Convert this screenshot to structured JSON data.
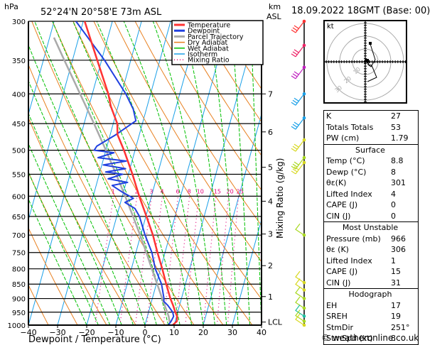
{
  "header": {
    "hpa_label": "hPa",
    "location": "52°24'N  20°58'E  73m  ASL",
    "km_label": "km",
    "asl_label": "ASL",
    "datetime": "18.09.2022  18GMT  (Base: 00)"
  },
  "footer": {
    "copyright": "© weatheronline.co.uk"
  },
  "hodograph": {
    "unit_label": "kt",
    "ring_labels": [
      "10",
      "20",
      "30"
    ]
  },
  "indices": {
    "general": [
      {
        "label": "K",
        "value": "27"
      },
      {
        "label": "Totals Totals",
        "value": "53"
      },
      {
        "label": "PW (cm)",
        "value": "1.79"
      }
    ],
    "surface": {
      "title": "Surface",
      "rows": [
        {
          "label": "Temp (°C)",
          "value": "8.8"
        },
        {
          "label": "Dewp (°C)",
          "value": "8"
        },
        {
          "label": "θε(K)",
          "value": "301"
        },
        {
          "label": "Lifted Index",
          "value": "4"
        },
        {
          "label": "CAPE (J)",
          "value": "0"
        },
        {
          "label": "CIN (J)",
          "value": "0"
        }
      ]
    },
    "most_unstable": {
      "title": "Most Unstable",
      "rows": [
        {
          "label": "Pressure (mb)",
          "value": "966"
        },
        {
          "label": "θε (K)",
          "value": "306"
        },
        {
          "label": "Lifted Index",
          "value": "1"
        },
        {
          "label": "CAPE (J)",
          "value": "15"
        },
        {
          "label": "CIN (J)",
          "value": "31"
        }
      ]
    },
    "hodograph": {
      "title": "Hodograph",
      "rows": [
        {
          "label": "EH",
          "value": "17"
        },
        {
          "label": "SREH",
          "value": "19"
        },
        {
          "label": "StmDir",
          "value": "251°"
        },
        {
          "label": "StmSpd (kt)",
          "value": "8"
        }
      ]
    }
  },
  "colors": {
    "temperature": "#ff3333",
    "dewpoint": "#2040e0",
    "parcel": "#aaaaaa",
    "dry_adiabat": "#e88020",
    "wet_adiabat": "#00c000",
    "isotherm": "#1aa0e8",
    "mixing_ratio": "#e0007a"
  },
  "chart_data": {
    "type": "line",
    "title": "Skew-T log-P sounding",
    "xlabel": "Dewpoint / Temperature (°C)",
    "ylabel": "hPa",
    "xlim": [
      -40,
      40
    ],
    "ylim": [
      1000,
      300
    ],
    "x_ticks": [
      -40,
      -30,
      -20,
      -10,
      0,
      10,
      20,
      30,
      40
    ],
    "pressure_levels": [
      300,
      350,
      400,
      450,
      500,
      550,
      600,
      650,
      700,
      750,
      800,
      850,
      900,
      950,
      1000
    ],
    "km_ticks": [
      {
        "label": "7",
        "p": 400
      },
      {
        "label": "6",
        "p": 465
      },
      {
        "label": "5",
        "p": 535
      },
      {
        "label": "4",
        "p": 612
      },
      {
        "label": "3",
        "p": 697
      },
      {
        "label": "2",
        "p": 790
      },
      {
        "label": "1",
        "p": 893
      },
      {
        "label": "LCL",
        "p": 988
      }
    ],
    "mixing_ratio_axis_label": "Mixing Ratio (g/kg)",
    "mixing_ratio_labels": [
      "1",
      "2",
      "3",
      "4",
      "6",
      "8",
      "10",
      "15",
      "20",
      "25"
    ],
    "mixing_ratio_values": [
      1,
      2,
      3,
      4,
      6,
      8,
      10,
      15,
      20,
      25
    ],
    "legend": [
      "Temperature",
      "Dewpoint",
      "Parcel Trajectory",
      "Dry Adiabat",
      "Wet Adiabat",
      "Isotherm",
      "Mixing Ratio"
    ],
    "legend_position": "top-right",
    "series": [
      {
        "name": "Temperature",
        "points": [
          [
            1000,
            9.5
          ],
          [
            985,
            10.6
          ],
          [
            966,
            10.2
          ],
          [
            950,
            9.2
          ],
          [
            925,
            7.8
          ],
          [
            900,
            6.2
          ],
          [
            850,
            3.4
          ],
          [
            800,
            0.6
          ],
          [
            750,
            -2.6
          ],
          [
            700,
            -5.8
          ],
          [
            650,
            -9.8
          ],
          [
            600,
            -14.2
          ],
          [
            550,
            -18.6
          ],
          [
            500,
            -23.8
          ],
          [
            470,
            -27.5
          ],
          [
            450,
            -28.6
          ],
          [
            420,
            -32.5
          ],
          [
            400,
            -34.5
          ],
          [
            350,
            -41.5
          ],
          [
            300,
            -49.5
          ]
        ]
      },
      {
        "name": "Dewpoint",
        "points": [
          [
            1000,
            8.0
          ],
          [
            985,
            8.6
          ],
          [
            966,
            9.0
          ],
          [
            950,
            8.3
          ],
          [
            925,
            6.0
          ],
          [
            910,
            4.2
          ],
          [
            900,
            4.0
          ],
          [
            850,
            1.8
          ],
          [
            800,
            -1.8
          ],
          [
            750,
            -4.5
          ],
          [
            700,
            -8.5
          ],
          [
            650,
            -12.2
          ],
          [
            630,
            -14.5
          ],
          [
            615,
            -18.5
          ],
          [
            605,
            -16.0
          ],
          [
            590,
            -20.5
          ],
          [
            575,
            -24.5
          ],
          [
            568,
            -19.5
          ],
          [
            560,
            -26.5
          ],
          [
            550,
            -22.0
          ],
          [
            545,
            -28.0
          ],
          [
            538,
            -21.5
          ],
          [
            530,
            -29.5
          ],
          [
            522,
            -22.0
          ],
          [
            515,
            -32.0
          ],
          [
            505,
            -27.0
          ],
          [
            500,
            -34.0
          ],
          [
            492,
            -33.5
          ],
          [
            470,
            -28.0
          ],
          [
            445,
            -22.5
          ],
          [
            425,
            -24.5
          ],
          [
            400,
            -28.5
          ],
          [
            350,
            -39.0
          ],
          [
            300,
            -52.5
          ]
        ]
      },
      {
        "name": "Parcel Trajectory",
        "points": [
          [
            988,
            8.2
          ],
          [
            966,
            7.3
          ],
          [
            950,
            6.4
          ],
          [
            900,
            3.4
          ],
          [
            850,
            0.3
          ],
          [
            800,
            -3.0
          ],
          [
            750,
            -6.4
          ],
          [
            700,
            -10.2
          ],
          [
            650,
            -14.4
          ],
          [
            600,
            -19.0
          ],
          [
            550,
            -24.2
          ],
          [
            500,
            -30.0
          ],
          [
            450,
            -36.6
          ],
          [
            400,
            -44.2
          ],
          [
            350,
            -52.8
          ],
          [
            320,
            -58.5
          ]
        ]
      }
    ],
    "wind_barbs": [
      {
        "p": 300,
        "color": "#ff3333"
      },
      {
        "p": 330,
        "color": "#ee2266"
      },
      {
        "p": 360,
        "color": "#c020c0"
      },
      {
        "p": 400,
        "color": "#1aa0e8"
      },
      {
        "p": 440,
        "color": "#1aa0e8"
      },
      {
        "p": 480,
        "color": "#d8d820"
      },
      {
        "p": 515,
        "color": "#a8d820"
      },
      {
        "p": 525,
        "color": "#d8d820"
      },
      {
        "p": 700,
        "color": "#a8d820"
      },
      {
        "p": 845,
        "color": "#d8d820"
      },
      {
        "p": 870,
        "color": "#d8d820"
      },
      {
        "p": 900,
        "color": "#a8d820"
      },
      {
        "p": 935,
        "color": "#a8d820"
      },
      {
        "p": 965,
        "color": "#20c0a0"
      },
      {
        "p": 985,
        "color": "#a8d820"
      },
      {
        "p": 1000,
        "color": "#d8d820"
      }
    ]
  }
}
